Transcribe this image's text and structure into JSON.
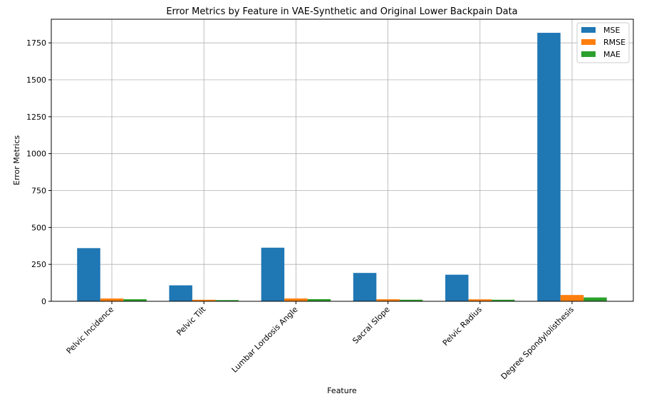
{
  "chart_data": {
    "type": "bar",
    "title": "Error Metrics by Feature in VAE-Synthetic and Original Lower Backpain Data",
    "xlabel": "Feature",
    "ylabel": "Error Metrics",
    "categories": [
      "Pelvic Incidence",
      "Pelvic Tilt",
      "Lumbar Lordosis Angle",
      "Sacral Slope",
      "Pelvic Radius",
      "Degree Spondylolisthesis"
    ],
    "series": [
      {
        "name": "MSE",
        "color": "#1f77b4",
        "values": [
          360,
          108,
          363,
          192,
          180,
          1818
        ]
      },
      {
        "name": "RMSE",
        "color": "#ff7f0e",
        "values": [
          19,
          10.4,
          19.1,
          13.9,
          13.4,
          42.6
        ]
      },
      {
        "name": "MAE",
        "color": "#2ca02c",
        "values": [
          14,
          8,
          14.5,
          10.5,
          10.5,
          26
        ]
      }
    ],
    "ylim": [
      0,
      1910
    ],
    "yticks": [
      0,
      250,
      500,
      750,
      1000,
      1250,
      1500,
      1750
    ],
    "grid": true,
    "legend_position": "top-right"
  }
}
